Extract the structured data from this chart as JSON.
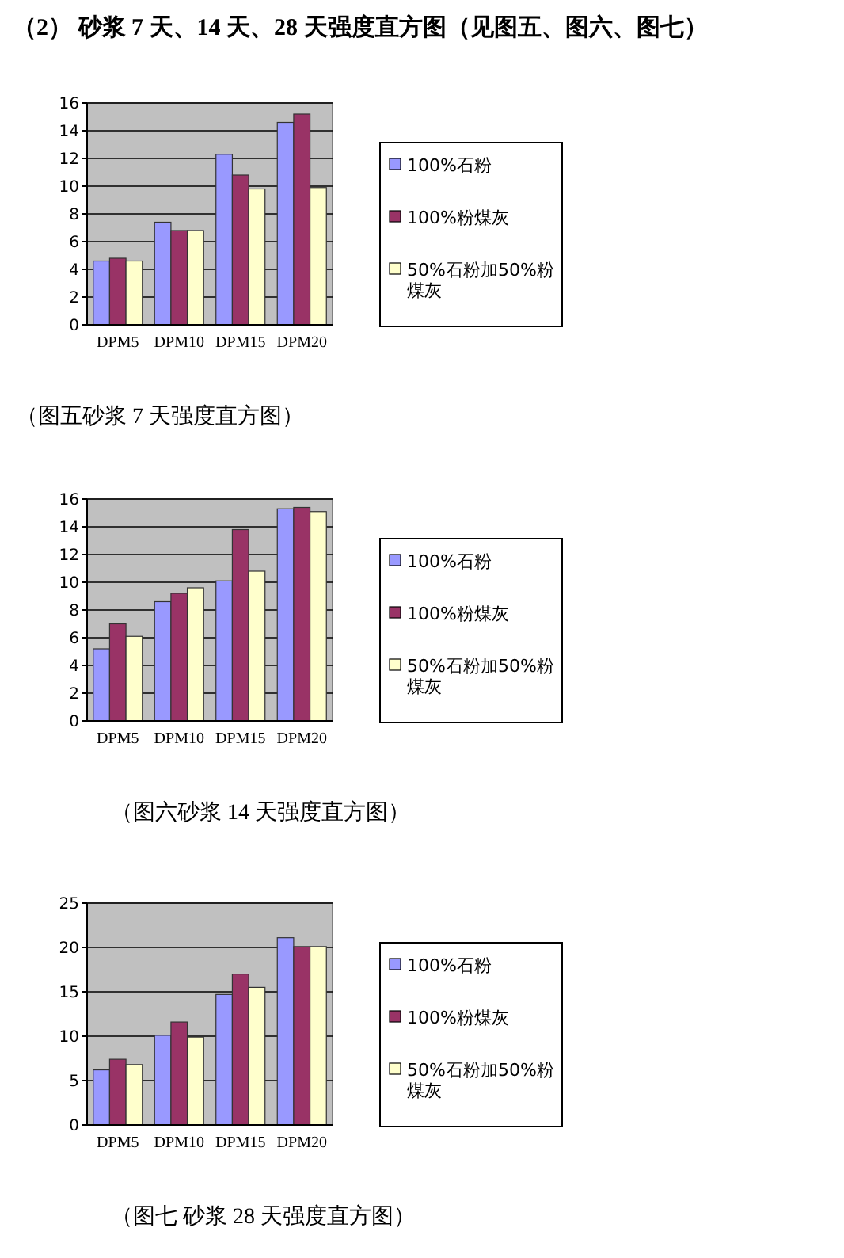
{
  "chart_data": [
    {
      "type": "bar",
      "title": "（2） 砂浆 7 天、14 天、28 天强度直方图（见图五、图六、图七）",
      "categories": [
        "DPM5",
        "DPM10",
        "DPM15",
        "DPM20"
      ],
      "series": [
        {
          "name": "100%石粉",
          "color": "#9999ff",
          "values": [
            4.6,
            7.4,
            12.3,
            14.6
          ]
        },
        {
          "name": "100%粉煤灰",
          "color": "#993366",
          "values": [
            4.8,
            6.8,
            10.8,
            15.2
          ]
        },
        {
          "name": "50%石粉加50%粉煤灰",
          "color": "#ffffcc",
          "values": [
            4.6,
            6.8,
            9.8,
            9.9
          ]
        }
      ],
      "ylim": [
        0,
        16
      ],
      "yticks": [
        0,
        2,
        4,
        6,
        8,
        10,
        12,
        14,
        16
      ],
      "grid": "y",
      "legend": "right",
      "annotations": [
        "（图五砂浆 7 天强度直方图）"
      ]
    },
    {
      "type": "bar",
      "categories": [
        "DPM5",
        "DPM10",
        "DPM15",
        "DPM20"
      ],
      "series": [
        {
          "name": "100%石粉",
          "color": "#9999ff",
          "values": [
            5.2,
            8.6,
            10.1,
            15.3
          ]
        },
        {
          "name": "100%粉煤灰",
          "color": "#993366",
          "values": [
            7.0,
            9.2,
            13.8,
            15.4
          ]
        },
        {
          "name": "50%石粉加50%粉煤灰",
          "color": "#ffffcc",
          "values": [
            6.1,
            9.6,
            10.8,
            15.1
          ]
        }
      ],
      "ylim": [
        0,
        16
      ],
      "yticks": [
        0,
        2,
        4,
        6,
        8,
        10,
        12,
        14,
        16
      ],
      "grid": "y",
      "legend": "right",
      "annotations": [
        "（图六砂浆 14 天强度直方图）"
      ]
    },
    {
      "type": "bar",
      "categories": [
        "DPM5",
        "DPM10",
        "DPM15",
        "DPM20"
      ],
      "series": [
        {
          "name": "100%石粉",
          "color": "#9999ff",
          "values": [
            6.2,
            10.1,
            14.7,
            21.1
          ]
        },
        {
          "name": "100%粉煤灰",
          "color": "#993366",
          "values": [
            7.4,
            11.6,
            17.0,
            20.1
          ]
        },
        {
          "name": "50%石粉加50%粉煤灰",
          "color": "#ffffcc",
          "values": [
            6.8,
            9.9,
            15.5,
            20.1
          ]
        }
      ],
      "ylim": [
        0,
        25
      ],
      "yticks": [
        0,
        5,
        10,
        15,
        20,
        25
      ],
      "grid": "y",
      "legend": "right",
      "annotations": [
        "（图七 砂浆 28 天强度直方图）"
      ]
    }
  ]
}
